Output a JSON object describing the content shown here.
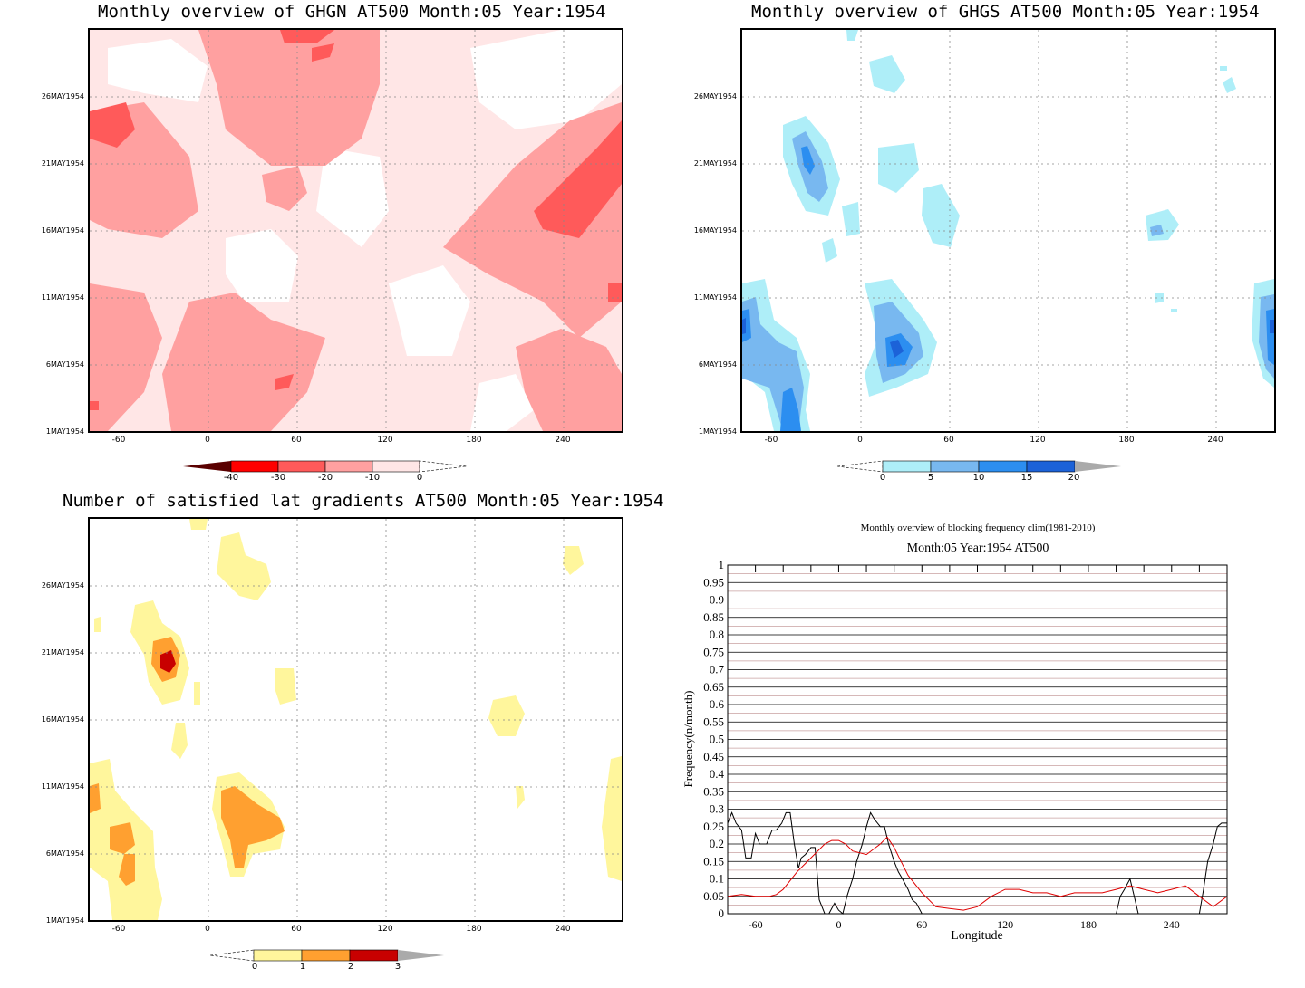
{
  "panels": {
    "ghgn": {
      "title": "Monthly overview of GHGN AT500 Month:05 Year:1954",
      "yticks": [
        "26MAY1954",
        "21MAY1954",
        "16MAY1954",
        "11MAY1954",
        "6MAY1954",
        "1MAY1954"
      ],
      "xticks": [
        "-60",
        "0",
        "60",
        "120",
        "180",
        "240"
      ],
      "colorbar_labels": [
        "-40",
        "-30",
        "-20",
        "-10",
        "0"
      ],
      "colors": [
        "#5a0000",
        "#ff0000",
        "#ff5a5a",
        "#ffa0a0",
        "#ffe6e6",
        "#ffffff"
      ]
    },
    "ghgs": {
      "title": "Monthly overview of GHGS AT500 Month:05 Year:1954",
      "yticks": [
        "26MAY1954",
        "21MAY1954",
        "16MAY1954",
        "11MAY1954",
        "6MAY1954",
        "1MAY1954"
      ],
      "xticks": [
        "-60",
        "0",
        "60",
        "120",
        "180",
        "240"
      ],
      "colorbar_labels": [
        "0",
        "5",
        "10",
        "15",
        "20"
      ],
      "colors": [
        "#ffffff",
        "#aeeef8",
        "#78b8f0",
        "#2c8ef0",
        "#1c62d8",
        "#aaaaaa"
      ]
    },
    "latgrad": {
      "title": "Number of satisfied lat gradients AT500 Month:05 Year:1954",
      "yticks": [
        "26MAY1954",
        "21MAY1954",
        "16MAY1954",
        "11MAY1954",
        "6MAY1954",
        "1MAY1954"
      ],
      "xticks": [
        "-60",
        "0",
        "60",
        "120",
        "180",
        "240"
      ],
      "colorbar_labels": [
        "0",
        "1",
        "2",
        "3"
      ],
      "colors": [
        "#ffffff",
        "#fff69c",
        "#ffa030",
        "#c80000",
        "#aaaaaa"
      ]
    },
    "frequency": {
      "title_line1": "Monthly overview of blocking frequency clim(1981-2010)",
      "title_line2": "Month:05 Year:1954  AT500",
      "xlabel": "Longitude",
      "ylabel": "Frequency(n/month)"
    }
  },
  "chart_data": [
    {
      "type": "heatmap",
      "title": "Monthly overview of GHGN AT500 Month:05 Year:1954",
      "x_ticks": [
        -60,
        0,
        60,
        120,
        180,
        240
      ],
      "xlim": [
        -80,
        280
      ],
      "y_ticks": [
        "1MAY1954",
        "6MAY1954",
        "11MAY1954",
        "16MAY1954",
        "21MAY1954",
        "26MAY1954"
      ],
      "levels": [
        -40,
        -30,
        -20,
        -10,
        0
      ],
      "colorbar_colors": [
        "#5a0000",
        "#ff0000",
        "#ff5a5a",
        "#ffa0a0",
        "#ffe6e6"
      ]
    },
    {
      "type": "heatmap",
      "title": "Monthly overview of GHGS AT500 Month:05 Year:1954",
      "x_ticks": [
        -60,
        0,
        60,
        120,
        180,
        240
      ],
      "xlim": [
        -80,
        280
      ],
      "y_ticks": [
        "1MAY1954",
        "6MAY1954",
        "11MAY1954",
        "16MAY1954",
        "21MAY1954",
        "26MAY1954"
      ],
      "levels": [
        0,
        5,
        10,
        15,
        20
      ],
      "colorbar_colors": [
        "#aeeef8",
        "#78b8f0",
        "#2c8ef0",
        "#1c62d8"
      ]
    },
    {
      "type": "heatmap",
      "title": "Number of satisfied lat gradients AT500 Month:05 Year:1954",
      "x_ticks": [
        -60,
        0,
        60,
        120,
        180,
        240
      ],
      "xlim": [
        -80,
        280
      ],
      "y_ticks": [
        "1MAY1954",
        "6MAY1954",
        "11MAY1954",
        "16MAY1954",
        "21MAY1954",
        "26MAY1954"
      ],
      "levels": [
        0,
        1,
        2,
        3
      ],
      "colorbar_colors": [
        "#fff69c",
        "#ffa030",
        "#c80000"
      ]
    },
    {
      "type": "line",
      "title": "Monthly overview of blocking frequency clim(1981-2010)",
      "subtitle": "Month:05 Year:1954  AT500",
      "xlabel": "Longitude",
      "ylabel": "Frequency(n/month)",
      "xlim": [
        -80,
        280
      ],
      "ylim": [
        0,
        1
      ],
      "x_ticks": [
        -60,
        0,
        60,
        120,
        180,
        240
      ],
      "y_ticks": [
        0,
        0.05,
        0.1,
        0.15,
        0.2,
        0.25,
        0.3,
        0.35,
        0.4,
        0.45,
        0.5,
        0.55,
        0.6,
        0.65,
        0.7,
        0.75,
        0.8,
        0.85,
        0.9,
        0.95,
        1
      ],
      "series": [
        {
          "color": "#000000",
          "x": [
            -80,
            -77,
            -74,
            -70,
            -67,
            -63,
            -60,
            -57,
            -52,
            -48,
            -45,
            -41,
            -38,
            -35,
            -32,
            -29,
            -27,
            -24,
            -20,
            -17,
            -14,
            -10,
            -7,
            -3,
            0,
            3,
            6,
            10,
            13,
            17,
            20,
            23,
            26,
            30,
            33,
            36,
            40,
            43,
            46,
            50,
            53,
            56,
            60,
            63,
            66,
            70,
            200,
            203,
            206,
            210,
            213,
            216,
            260,
            263,
            266,
            270,
            273,
            276,
            280
          ],
          "y": [
            0.26,
            0.29,
            0.26,
            0.24,
            0.16,
            0.16,
            0.23,
            0.2,
            0.2,
            0.24,
            0.24,
            0.26,
            0.29,
            0.29,
            0.2,
            0.13,
            0.16,
            0.17,
            0.19,
            0.19,
            0.04,
            0.0,
            0.0,
            0.03,
            0.01,
            0.0,
            0.05,
            0.1,
            0.15,
            0.2,
            0.25,
            0.29,
            0.27,
            0.25,
            0.25,
            0.2,
            0.15,
            0.12,
            0.1,
            0.07,
            0.04,
            0.03,
            0.0,
            0.0,
            0.0,
            0.0,
            0.0,
            0.05,
            0.07,
            0.1,
            0.05,
            0.0,
            0.0,
            0.07,
            0.15,
            0.2,
            0.25,
            0.26,
            0.26
          ]
        },
        {
          "color": "#e00000",
          "x": [
            -80,
            -70,
            -60,
            -50,
            -45,
            -40,
            -30,
            -20,
            -10,
            -5,
            0,
            5,
            10,
            20,
            30,
            35,
            40,
            45,
            50,
            60,
            70,
            80,
            90,
            100,
            110,
            120,
            130,
            140,
            150,
            160,
            170,
            180,
            190,
            200,
            210,
            220,
            230,
            240,
            250,
            260,
            270,
            280
          ],
          "y": [
            0.05,
            0.055,
            0.05,
            0.05,
            0.055,
            0.07,
            0.12,
            0.16,
            0.2,
            0.21,
            0.21,
            0.2,
            0.18,
            0.17,
            0.2,
            0.22,
            0.19,
            0.15,
            0.11,
            0.06,
            0.02,
            0.015,
            0.01,
            0.02,
            0.05,
            0.07,
            0.07,
            0.06,
            0.06,
            0.05,
            0.06,
            0.06,
            0.06,
            0.07,
            0.08,
            0.07,
            0.06,
            0.07,
            0.08,
            0.05,
            0.02,
            0.05
          ]
        }
      ]
    }
  ]
}
